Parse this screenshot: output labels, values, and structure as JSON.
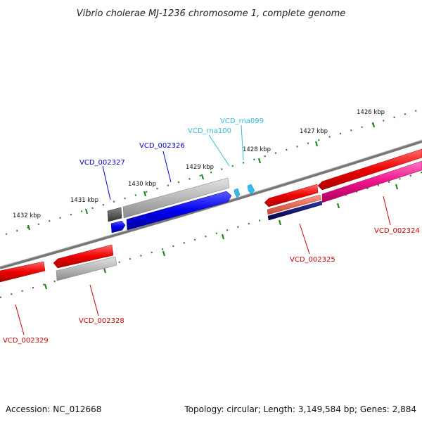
{
  "title": "Vibrio cholerae MJ-1236 chromosome 1, complete genome",
  "footer": {
    "accession": "Accession: NC_012668",
    "stats": "Topology: circular; Length: 3,149,584 bp; Genes: 2,884"
  },
  "ticks": [
    "1426 kbp",
    "1427 kbp",
    "1428 kbp",
    "1429 kbp",
    "1430 kbp",
    "1431 kbp",
    "1432 kbp"
  ],
  "genes": [
    {
      "id": "VCD_002324",
      "color": "#cc0000"
    },
    {
      "id": "VCD_002325",
      "color": "#cc0000"
    },
    {
      "id": "VCD_002326",
      "color": "#0000cc"
    },
    {
      "id": "VCD_002327",
      "color": "#0000cc"
    },
    {
      "id": "VCD_002328",
      "color": "#cc0000"
    },
    {
      "id": "VCD_002329",
      "color": "#cc0000"
    },
    {
      "id": "VCD_rna099",
      "color": "#33bbdd"
    },
    {
      "id": "VCD_rna100",
      "color": "#33bbdd"
    }
  ],
  "colors": {
    "backbone": "#888888",
    "cds_forward": "#ee0000",
    "cds_reverse": "#0000ee",
    "gene_gray": "#aaaaaa",
    "gene_dark": "#555555",
    "gene_pink": "#ee1188",
    "gene_salmon": "#ee6655",
    "gene_navy": "#000077",
    "rna": "#33bbee",
    "tick": "#228822"
  }
}
